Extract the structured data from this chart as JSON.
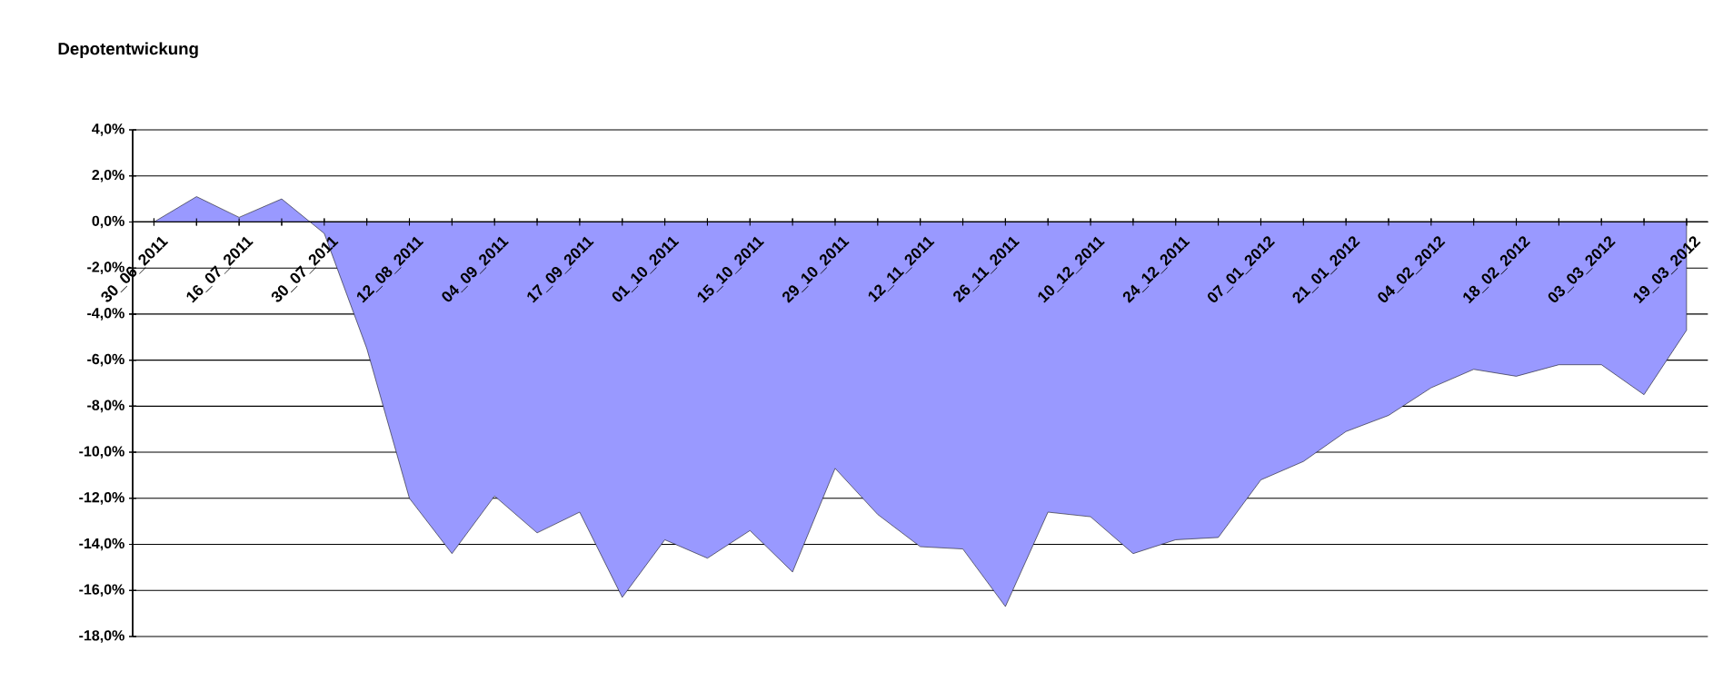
{
  "chart_data": {
    "type": "area",
    "title": "Depotentwickung",
    "categories": [
      "30_06_2011",
      null,
      "16_07_2011",
      null,
      "30_07_2011",
      null,
      "12_08_2011",
      null,
      "04_09_2011",
      null,
      "17_09_2011",
      null,
      "01_10_2011",
      null,
      "15_10_2011",
      null,
      "29_10_2011",
      null,
      "12_11_2011",
      null,
      "26_11_2011",
      null,
      "10_12_2011",
      null,
      "24_12_2011",
      null,
      "07_01_2012",
      null,
      "21_01_2012",
      null,
      "04_02_2012",
      null,
      "18_02_2012",
      null,
      "03_03_2012",
      null,
      "19_03_2012"
    ],
    "values": [
      0,
      1.1,
      0.2,
      1.0,
      -0.5,
      -5.5,
      -12.0,
      -14.4,
      -11.9,
      -13.5,
      -12.6,
      -16.3,
      -13.8,
      -14.6,
      -13.4,
      -15.2,
      -10.7,
      -12.7,
      -14.1,
      -14.2,
      -16.7,
      -12.6,
      -12.8,
      -14.4,
      -13.8,
      -13.7,
      -11.2,
      -10.4,
      -9.1,
      -8.4,
      -7.2,
      -6.4,
      -6.7,
      -6.2,
      -6.2,
      -7.5,
      -4.7
    ],
    "color": "#9999ff",
    "ylim": [
      -18,
      4
    ],
    "yticks": [
      {
        "value": -18,
        "label": "-18,0%"
      },
      {
        "value": -16,
        "label": "-16,0%"
      },
      {
        "value": -14,
        "label": "-14,0%"
      },
      {
        "value": -12,
        "label": "-12,0%"
      },
      {
        "value": -10,
        "label": "-10,0%"
      },
      {
        "value": -8,
        "label": "-8,0%"
      },
      {
        "value": -6,
        "label": "-6,0%"
      },
      {
        "value": -4,
        "label": "-4,0%"
      },
      {
        "value": -2,
        "label": "-2,0%"
      },
      {
        "value": 0,
        "label": "0,0%"
      },
      {
        "value": 2,
        "label": "2,0%"
      },
      {
        "value": 4,
        "label": "4,0%"
      }
    ],
    "grid": "y"
  }
}
